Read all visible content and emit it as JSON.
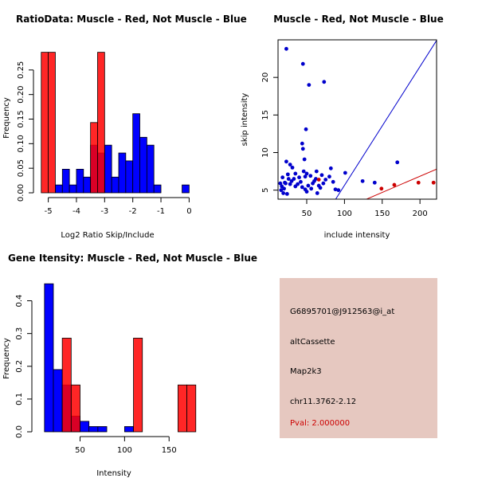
{
  "chart_data": [
    {
      "type": "bar",
      "id": "ratio",
      "title": "RatioData: Muscle - Red, Not Muscle - Blue",
      "xlabel": "Log2 Ratio Skip/Include",
      "ylabel": "Frequency",
      "xlim": [
        -5.3,
        0.3
      ],
      "ylim": [
        0,
        0.3
      ],
      "xticks": [
        -5,
        -4,
        -3,
        -2,
        -1,
        0
      ],
      "yticks": [
        0.0,
        0.05,
        0.1,
        0.15,
        0.2,
        0.25
      ],
      "ytick_labels": [
        "0.00",
        "0.05",
        "0.10",
        "0.15",
        "0.20",
        "0.25"
      ],
      "series": [
        {
          "name": "Not Muscle",
          "color": "#0000ff",
          "bins": [
            [
              -4.75,
              -4.5,
              0.016
            ],
            [
              -4.5,
              -4.25,
              0.048
            ],
            [
              -4.25,
              -4.0,
              0.016
            ],
            [
              -4.0,
              -3.75,
              0.048
            ],
            [
              -3.75,
              -3.5,
              0.032
            ],
            [
              -3.5,
              -3.25,
              0.097
            ],
            [
              -3.25,
              -3.0,
              0.081
            ],
            [
              -3.0,
              -2.75,
              0.097
            ],
            [
              -2.75,
              -2.5,
              0.032
            ],
            [
              -2.5,
              -2.25,
              0.081
            ],
            [
              -2.25,
              -2.0,
              0.065
            ],
            [
              -2.0,
              -1.75,
              0.161
            ],
            [
              -1.75,
              -1.5,
              0.113
            ],
            [
              -1.5,
              -1.25,
              0.097
            ],
            [
              -1.25,
              -1.0,
              0.016
            ],
            [
              -0.25,
              0.0,
              0.016
            ]
          ]
        },
        {
          "name": "Muscle",
          "color": "#ff0000",
          "bins": [
            [
              -5.25,
              -5.0,
              0.286
            ],
            [
              -5.0,
              -4.75,
              0.286
            ],
            [
              -3.5,
              -3.25,
              0.143
            ],
            [
              -3.25,
              -3.0,
              0.286
            ]
          ]
        }
      ]
    },
    {
      "type": "scatter",
      "id": "intensity-scatter",
      "title": "Muscle - Red, Not Muscle - Blue",
      "xlabel": "include intensity",
      "ylabel": "skip intensity",
      "xlim": [
        12,
        222
      ],
      "ylim": [
        3.8,
        25
      ],
      "xticks": [
        50,
        100,
        150,
        200
      ],
      "yticks": [
        5,
        10,
        15,
        20
      ],
      "lines": [
        {
          "color": "#0000cc",
          "slope": 0.158,
          "intercept": -10.16
        },
        {
          "color": "#cc0000",
          "slope": 0.0431,
          "intercept": -1.77
        }
      ],
      "series": [
        {
          "name": "Not Muscle",
          "color": "#0000cc",
          "points": [
            [
              23,
              23.8
            ],
            [
              45,
              21.8
            ],
            [
              53,
              19
            ],
            [
              73,
              19.4
            ],
            [
              49,
              13.1
            ],
            [
              44,
              11.2
            ],
            [
              45,
              10.5
            ],
            [
              23,
              8.8
            ],
            [
              28,
              8.4
            ],
            [
              31,
              8
            ],
            [
              47,
              9.1
            ],
            [
              63,
              7.5
            ],
            [
              82,
              7.9
            ],
            [
              101,
              7.3
            ],
            [
              170,
              8.7
            ],
            [
              50,
              7.2
            ],
            [
              55,
              6.9
            ],
            [
              70,
              7
            ],
            [
              40,
              6.7
            ],
            [
              26,
              6.5
            ],
            [
              18,
              6.7
            ],
            [
              15,
              5.9
            ],
            [
              17,
              5.5
            ],
            [
              20,
              5.2
            ],
            [
              22,
              5.9
            ],
            [
              30,
              6.2
            ],
            [
              35,
              5.5
            ],
            [
              38,
              5.8
            ],
            [
              42,
              6.1
            ],
            [
              44,
              5.4
            ],
            [
              48,
              5.1
            ],
            [
              52,
              5.6
            ],
            [
              58,
              5.9
            ],
            [
              60,
              6.2
            ],
            [
              64,
              4.6
            ],
            [
              68,
              5.3
            ],
            [
              72,
              5.9
            ],
            [
              75,
              6.4
            ],
            [
              85,
              6.1
            ],
            [
              88,
              5.1
            ],
            [
              92,
              5
            ],
            [
              124,
              6.2
            ],
            [
              140,
              6
            ],
            [
              16,
              5
            ],
            [
              19,
              4.6
            ],
            [
              24,
              4.5
            ],
            [
              28,
              5.8
            ],
            [
              33,
              6.5
            ],
            [
              46,
              7.5
            ],
            [
              48,
              6.8
            ],
            [
              50,
              4.8
            ],
            [
              56,
              5.2
            ],
            [
              62,
              6.5
            ],
            [
              66,
              5.6
            ],
            [
              80,
              6.8
            ],
            [
              25,
              7.1
            ],
            [
              35,
              7.2
            ],
            [
              21,
              6
            ]
          ]
        },
        {
          "name": "Muscle",
          "color": "#cc0000",
          "points": [
            [
              66,
              6.4
            ],
            [
              149,
              5.2
            ],
            [
              166,
              5.7
            ],
            [
              198,
              6
            ],
            [
              218,
              6
            ]
          ]
        }
      ]
    },
    {
      "type": "bar",
      "id": "gene-intensity",
      "title": "Gene Itensity: Muscle - Red, Not Muscle - Blue",
      "xlabel": "Intensity",
      "ylabel": "Frequency",
      "xlim": [
        3,
        182
      ],
      "ylim": [
        0,
        0.45
      ],
      "xticks": [
        50,
        100,
        150
      ],
      "yticks": [
        0.0,
        0.1,
        0.2,
        0.3,
        0.4
      ],
      "ytick_labels": [
        "0.0",
        "0.1",
        "0.2",
        "0.3",
        "0.4"
      ],
      "series": [
        {
          "name": "Not Muscle",
          "color": "#0000ff",
          "bins": [
            [
              10,
              20,
              0.452
            ],
            [
              20,
              30,
              0.19
            ],
            [
              30,
              40,
              0.143
            ],
            [
              40,
              50,
              0.048
            ],
            [
              50,
              60,
              0.032
            ],
            [
              60,
              70,
              0.016
            ],
            [
              70,
              80,
              0.016
            ],
            [
              100,
              110,
              0.016
            ]
          ]
        },
        {
          "name": "Muscle",
          "color": "#ff0000",
          "bins": [
            [
              30,
              40,
              0.286
            ],
            [
              40,
              50,
              0.143
            ],
            [
              110,
              120,
              0.286
            ],
            [
              160,
              170,
              0.143
            ],
            [
              170,
              180,
              0.143
            ]
          ]
        }
      ]
    }
  ],
  "info": {
    "probe": "G6895701@J912563@i_at",
    "event_type": "altCassette",
    "gene": "Map2k3",
    "location": "chr11.3762-2.12",
    "pval": "Pval: 2.000000",
    "panel_color": "#e6c8c0",
    "pval_color": "#cc0000"
  }
}
